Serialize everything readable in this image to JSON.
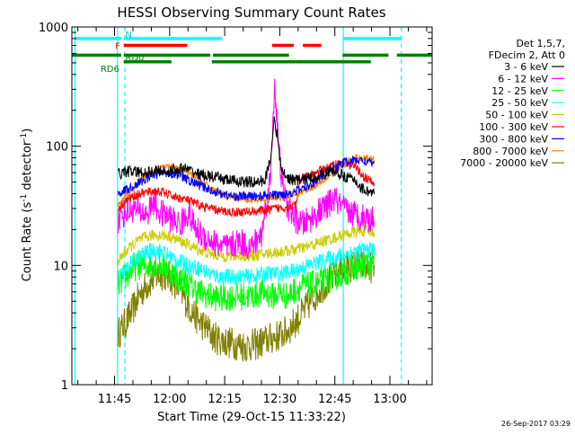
{
  "chart_data": {
    "type": "line",
    "title": "HESSI Observing Summary Count Rates",
    "xlabel": "Start Time (29-Oct-15 11:33:22)",
    "ylabel_prefix": "Count Rate (s",
    "ylabel_sup1": "-1",
    "ylabel_mid": " detector",
    "ylabel_sup2": "-1",
    "ylabel_suffix": ")",
    "yscale": "log",
    "ylim": [
      1,
      1000
    ],
    "xlim_min": [
      33.37,
      131.5
    ],
    "xticks": [
      {
        "min": 45,
        "label": "11:45"
      },
      {
        "min": 60,
        "label": "12:00"
      },
      {
        "min": 75,
        "label": "12:15"
      },
      {
        "min": 90,
        "label": "12:30"
      },
      {
        "min": 105,
        "label": "12:45"
      },
      {
        "min": 120,
        "label": "13:00"
      }
    ],
    "yticks": [
      {
        "value": 1,
        "label": "1"
      },
      {
        "value": 10,
        "label": "10"
      },
      {
        "value": 100,
        "label": "100"
      },
      {
        "value": 1000,
        "label": "1000"
      }
    ],
    "legend_header": [
      "Det 1,5,7,",
      "FDecim 2, Att 0"
    ],
    "legend_position": "right",
    "timestamp": "26-Sep-2017 03:29",
    "flags": [
      {
        "label": "N",
        "color": "#00ffff",
        "level": 800,
        "segments": [
          [
            34.2,
            46.8
          ],
          [
            47.5,
            74.3
          ],
          [
            107.2,
            123.2
          ]
        ]
      },
      {
        "label": "F",
        "color": "#ff0000",
        "level": 700,
        "segments": [
          [
            47.5,
            64.8
          ],
          [
            87.9,
            93.8
          ],
          [
            96.3,
            101.3
          ]
        ]
      },
      {
        "label": "RD0",
        "color": "#008000",
        "level": 580,
        "segments": [
          [
            33.4,
            46.8
          ],
          [
            47.5,
            71.1
          ],
          [
            71.8,
            92.5
          ],
          [
            107.1,
            119.6
          ],
          [
            121.9,
            131.5
          ]
        ]
      },
      {
        "label": "RD6",
        "color": "#008000",
        "level": 510,
        "segments": [
          [
            47.5,
            60.5
          ],
          [
            71.5,
            94.5
          ],
          [
            94.5,
            114.8
          ]
        ]
      }
    ],
    "vlines": [
      {
        "min": 34.2,
        "color": "#00ffff",
        "style": "solid"
      },
      {
        "min": 45.8,
        "color": "#00ffff",
        "style": "solid"
      },
      {
        "min": 47.8,
        "color": "#00ffff",
        "style": "dash"
      },
      {
        "min": 107.3,
        "color": "#00ffff",
        "style": "solid"
      },
      {
        "min": 123.1,
        "color": "#00ffff",
        "style": "dash"
      }
    ],
    "series": [
      {
        "name": "3 - 6 keV",
        "color": "#000000",
        "noise": 0.05,
        "points": [
          [
            46,
            58
          ],
          [
            48,
            62
          ],
          [
            52,
            60
          ],
          [
            56,
            62
          ],
          [
            60,
            62
          ],
          [
            64,
            65
          ],
          [
            68,
            58
          ],
          [
            72,
            55
          ],
          [
            76,
            52
          ],
          [
            80,
            50
          ],
          [
            84,
            50
          ],
          [
            86,
            52
          ],
          [
            87.5,
            80
          ],
          [
            88.5,
            175
          ],
          [
            89.3,
            120
          ],
          [
            90.2,
            70
          ],
          [
            91.5,
            55
          ],
          [
            94,
            52
          ],
          [
            96,
            52
          ],
          [
            100,
            56
          ],
          [
            104,
            62
          ],
          [
            108,
            56
          ],
          [
            111,
            50
          ],
          [
            112,
            45
          ],
          [
            114,
            42
          ],
          [
            115.8,
            40
          ]
        ]
      },
      {
        "name": "6 - 12 keV",
        "color": "#ff00ff",
        "noise": 0.12,
        "points": [
          [
            46,
            24
          ],
          [
            48,
            28
          ],
          [
            50,
            30
          ],
          [
            52,
            28
          ],
          [
            54,
            27
          ],
          [
            55.5,
            35
          ],
          [
            57,
            28
          ],
          [
            59,
            26
          ],
          [
            61,
            24
          ],
          [
            63,
            22
          ],
          [
            65,
            28
          ],
          [
            67,
            20
          ],
          [
            70,
            17
          ],
          [
            73,
            15
          ],
          [
            76,
            14
          ],
          [
            79,
            16
          ],
          [
            82,
            14
          ],
          [
            85,
            18
          ],
          [
            87.5,
            55
          ],
          [
            88.6,
            350
          ],
          [
            89.5,
            120
          ],
          [
            90.5,
            50
          ],
          [
            92,
            32
          ],
          [
            94,
            25
          ],
          [
            96,
            22
          ],
          [
            98,
            24
          ],
          [
            100,
            27
          ],
          [
            103,
            32
          ],
          [
            105,
            36
          ],
          [
            107,
            30
          ],
          [
            109,
            28
          ],
          [
            112,
            26
          ],
          [
            114,
            25
          ],
          [
            115.8,
            24
          ]
        ]
      },
      {
        "name": "12 - 25 keV",
        "color": "#00ff00",
        "noise": 0.12,
        "points": [
          [
            46,
            7
          ],
          [
            48,
            8
          ],
          [
            50,
            9.5
          ],
          [
            52,
            10
          ],
          [
            54,
            10
          ],
          [
            56,
            10.5
          ],
          [
            58,
            10
          ],
          [
            60,
            9
          ],
          [
            62,
            8
          ],
          [
            65,
            7
          ],
          [
            68,
            6
          ],
          [
            71,
            5.5
          ],
          [
            74,
            5.3
          ],
          [
            78,
            5.5
          ],
          [
            82,
            5.5
          ],
          [
            86,
            6
          ],
          [
            88,
            5.5
          ],
          [
            90,
            6
          ],
          [
            92,
            5.5
          ],
          [
            95,
            6.5
          ],
          [
            100,
            7
          ],
          [
            105,
            8
          ],
          [
            110,
            9.5
          ],
          [
            113,
            10
          ],
          [
            115.8,
            10
          ]
        ]
      },
      {
        "name": "25 - 50 keV",
        "color": "#00ffff",
        "noise": 0.07,
        "points": [
          [
            46,
            8
          ],
          [
            48,
            9
          ],
          [
            50,
            11
          ],
          [
            52,
            12
          ],
          [
            54,
            13
          ],
          [
            56,
            13.5
          ],
          [
            58,
            13
          ],
          [
            60,
            12
          ],
          [
            62,
            11
          ],
          [
            65,
            10
          ],
          [
            68,
            9.5
          ],
          [
            71,
            8.5
          ],
          [
            74,
            8
          ],
          [
            78,
            8
          ],
          [
            82,
            8
          ],
          [
            86,
            8.5
          ],
          [
            90,
            8.5
          ],
          [
            94,
            9
          ],
          [
            98,
            10
          ],
          [
            102,
            11
          ],
          [
            106,
            12
          ],
          [
            110,
            13
          ],
          [
            113,
            13.5
          ],
          [
            115.8,
            13.5
          ]
        ]
      },
      {
        "name": "50 - 100 keV",
        "color": "#cccc00",
        "noise": 0.05,
        "points": [
          [
            46,
            11
          ],
          [
            48,
            13
          ],
          [
            50,
            15
          ],
          [
            52,
            16.5
          ],
          [
            54,
            17.5
          ],
          [
            56,
            18
          ],
          [
            58,
            18
          ],
          [
            60,
            17.5
          ],
          [
            62,
            16.5
          ],
          [
            65,
            15
          ],
          [
            68,
            13.5
          ],
          [
            71,
            12.5
          ],
          [
            74,
            12
          ],
          [
            78,
            12
          ],
          [
            82,
            12
          ],
          [
            86,
            12.5
          ],
          [
            90,
            13
          ],
          [
            94,
            13.5
          ],
          [
            98,
            14.5
          ],
          [
            102,
            16
          ],
          [
            106,
            17.5
          ],
          [
            110,
            19
          ],
          [
            113,
            19.5
          ],
          [
            115.8,
            19
          ]
        ]
      },
      {
        "name": "100 - 300 keV",
        "color": "#ff0000",
        "noise": 0.04,
        "points": [
          [
            46,
            30
          ],
          [
            48,
            35
          ],
          [
            50,
            38
          ],
          [
            52,
            40
          ],
          [
            54,
            41
          ],
          [
            56,
            42
          ],
          [
            58,
            41
          ],
          [
            60,
            39
          ],
          [
            62,
            37
          ],
          [
            64,
            36
          ],
          [
            66,
            34
          ],
          [
            68,
            32
          ],
          [
            71,
            30
          ],
          [
            74,
            28.5
          ],
          [
            77,
            28
          ],
          [
            80,
            28
          ],
          [
            83,
            28.5
          ],
          [
            86,
            29
          ],
          [
            89,
            30
          ],
          [
            92,
            31
          ],
          [
            94.5,
            32
          ],
          [
            95.5,
            52
          ],
          [
            97,
            55
          ],
          [
            99,
            58
          ],
          [
            101,
            62
          ],
          [
            103,
            66
          ],
          [
            105,
            70
          ],
          [
            107,
            73
          ],
          [
            109,
            71
          ],
          [
            111,
            65
          ],
          [
            113,
            55
          ],
          [
            115.8,
            48
          ]
        ]
      },
      {
        "name": "300 - 800 keV",
        "color": "#0000ff",
        "noise": 0.04,
        "points": [
          [
            46,
            40
          ],
          [
            48,
            43
          ],
          [
            50,
            46
          ],
          [
            52,
            50
          ],
          [
            54,
            54
          ],
          [
            56,
            58
          ],
          [
            58,
            60
          ],
          [
            60,
            60
          ],
          [
            62,
            58
          ],
          [
            65,
            52
          ],
          [
            68,
            47
          ],
          [
            71,
            43
          ],
          [
            74,
            40
          ],
          [
            77,
            38
          ],
          [
            80,
            38
          ],
          [
            83,
            38
          ],
          [
            86,
            38.5
          ],
          [
            89,
            39
          ],
          [
            92,
            40
          ],
          [
            94.5,
            42
          ],
          [
            96,
            44
          ],
          [
            98,
            47
          ],
          [
            100,
            52
          ],
          [
            102,
            57
          ],
          [
            104,
            63
          ],
          [
            106,
            69
          ],
          [
            108,
            74
          ],
          [
            110,
            76
          ],
          [
            112,
            76
          ],
          [
            114,
            74
          ],
          [
            115.8,
            72
          ]
        ]
      },
      {
        "name": "800 - 7000 keV",
        "color": "#ff8000",
        "noise": 0.03,
        "points": [
          [
            46,
            32
          ],
          [
            48,
            38
          ],
          [
            50,
            44
          ],
          [
            52,
            52
          ],
          [
            54,
            58
          ],
          [
            56,
            63
          ],
          [
            58,
            66
          ],
          [
            60,
            68
          ],
          [
            62,
            66
          ],
          [
            65,
            60
          ],
          [
            68,
            52
          ],
          [
            71,
            45
          ],
          [
            74,
            40
          ],
          [
            77,
            37
          ],
          [
            80,
            36
          ],
          [
            83,
            36
          ],
          [
            86,
            36.5
          ],
          [
            89,
            37
          ],
          [
            92,
            38
          ],
          [
            95,
            40
          ],
          [
            98,
            44
          ],
          [
            101,
            50
          ],
          [
            104,
            58
          ],
          [
            107,
            68
          ],
          [
            109,
            76
          ],
          [
            111,
            80
          ],
          [
            113,
            80
          ],
          [
            115.8,
            78
          ]
        ]
      },
      {
        "name": "7000 - 20000 keV",
        "color": "#808000",
        "noise": 0.14,
        "points": [
          [
            46,
            2.7
          ],
          [
            48,
            3.3
          ],
          [
            50,
            4.3
          ],
          [
            52,
            5.8
          ],
          [
            54,
            7
          ],
          [
            56,
            8
          ],
          [
            58,
            8.5
          ],
          [
            60,
            8
          ],
          [
            62,
            6.8
          ],
          [
            64,
            5.3
          ],
          [
            66,
            4.2
          ],
          [
            68,
            3.4
          ],
          [
            70,
            3
          ],
          [
            72,
            2.5
          ],
          [
            75,
            2.3
          ],
          [
            78,
            2.2
          ],
          [
            81,
            2.1
          ],
          [
            84,
            2.2
          ],
          [
            87,
            2.4
          ],
          [
            90,
            2.6
          ],
          [
            92,
            2.8
          ],
          [
            94,
            3.3
          ],
          [
            96,
            3.9
          ],
          [
            98,
            4.8
          ],
          [
            100,
            5.8
          ],
          [
            102,
            6.8
          ],
          [
            104,
            7.8
          ],
          [
            106,
            8.8
          ],
          [
            108,
            9.6
          ],
          [
            110,
            10
          ],
          [
            112,
            10
          ],
          [
            114,
            9.8
          ],
          [
            115.8,
            9.5
          ]
        ]
      }
    ]
  }
}
